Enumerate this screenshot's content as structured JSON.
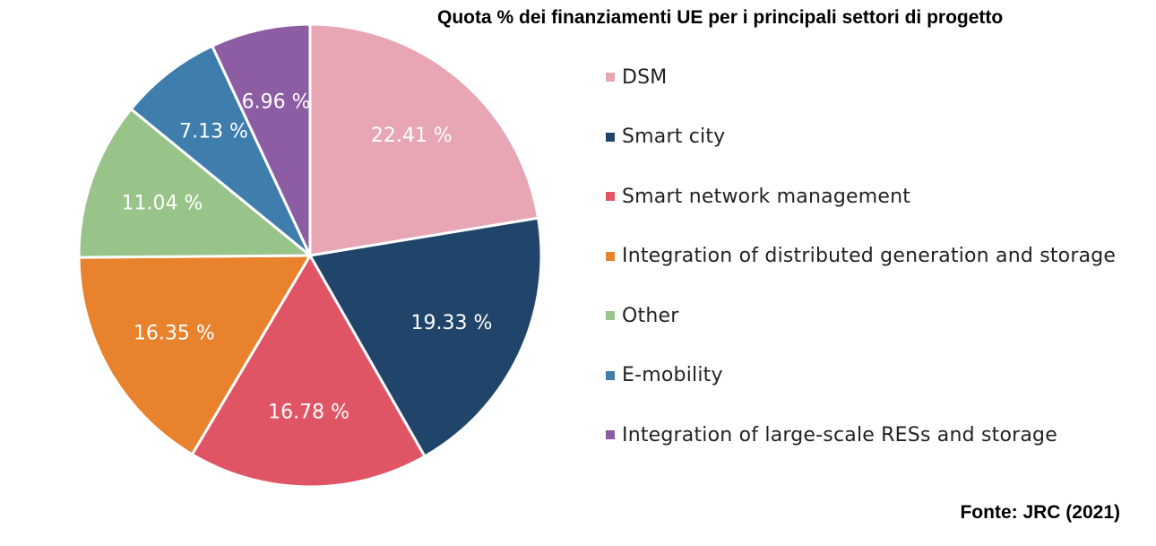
{
  "chart_data": {
    "type": "pie",
    "title": "Quota % dei finanziamenti UE per i principali settori di progetto",
    "slices": [
      {
        "label": "DSM",
        "value": 22.41,
        "display": "22.41 %",
        "color": "#e8a6b5"
      },
      {
        "label": "Smart city",
        "value": 19.33,
        "display": "19.33 %",
        "color": "#21456a"
      },
      {
        "label": "Smart network management",
        "value": 16.78,
        "display": "16.78 %",
        "color": "#e05565"
      },
      {
        "label": "Integration of distributed generation and storage",
        "value": 16.35,
        "display": "16.35 %",
        "color": "#e8822d"
      },
      {
        "label": "Other",
        "value": 11.04,
        "display": "11.04 %",
        "color": "#98c48a"
      },
      {
        "label": "E-mobility",
        "value": 7.13,
        "display": "7.13 %",
        "color": "#3f7dac"
      },
      {
        "label": "Integration of large-scale RESs and storage",
        "value": 6.96,
        "display": "6.96 %",
        "color": "#8c5da3"
      }
    ],
    "legend_position": "right"
  },
  "source": "Fonte: JRC (2021)"
}
